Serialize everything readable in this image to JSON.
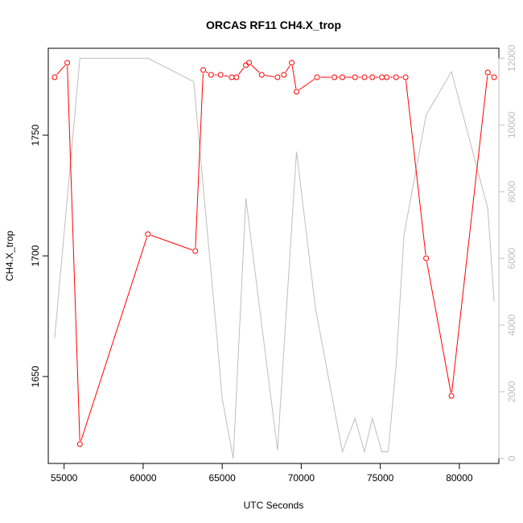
{
  "chart_data": {
    "type": "line",
    "title": "ORCAS RF11 CH4.X_trop",
    "xlabel": "UTC Seconds",
    "ylabel": "CH4.X_trop",
    "xlim": [
      54000,
      82500
    ],
    "ylim": [
      1614,
      1786
    ],
    "y2lim": [
      -150,
      12300
    ],
    "x_ticks": [
      55000,
      60000,
      65000,
      70000,
      75000,
      80000
    ],
    "y_ticks": [
      1650,
      1700,
      1750
    ],
    "y2_ticks": [
      0,
      2000,
      4000,
      6000,
      8000,
      10000,
      12000
    ],
    "colors": {
      "primary": "#ff0000",
      "secondary": "#bebebe",
      "axis": "#000000"
    },
    "series": [
      {
        "role": "primary",
        "style": "line-points",
        "x": [
          54400,
          55200,
          56000,
          60300,
          63300,
          63800,
          64300,
          64900,
          65600,
          65900,
          66500,
          66700,
          67500,
          68500,
          68900,
          69400,
          69700,
          71000,
          72100,
          72600,
          73400,
          74000,
          74500,
          75100,
          75400,
          76000,
          76600,
          77900,
          79500,
          81800,
          82200
        ],
        "y": [
          1774,
          1780,
          1622,
          1709,
          1702,
          1777,
          1775,
          1775,
          1774,
          1774,
          1779,
          1780,
          1775,
          1774,
          1775,
          1780,
          1768,
          1774,
          1774,
          1774,
          1774,
          1774,
          1774,
          1774,
          1774,
          1774,
          1774,
          1699,
          1642,
          1776,
          1774
        ]
      },
      {
        "role": "secondary",
        "style": "line",
        "axis": "right",
        "x": [
          54400,
          56000,
          60300,
          63200,
          63500,
          64600,
          65000,
          65700,
          66500,
          67500,
          68500,
          69700,
          70900,
          72600,
          73400,
          74000,
          74500,
          75100,
          75500,
          76000,
          76500,
          77900,
          79500,
          81800,
          82200
        ],
        "y": [
          3600,
          12000,
          12000,
          11300,
          9700,
          4000,
          1800,
          0,
          7800,
          4000,
          250,
          9200,
          4500,
          200,
          1200,
          200,
          1200,
          200,
          200,
          2800,
          6700,
          10300,
          11600,
          7500,
          4700
        ]
      }
    ]
  }
}
